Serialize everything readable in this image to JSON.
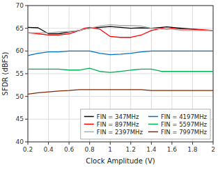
{
  "chart_data": {
    "type": "line",
    "xlabel": "Clock Amplitude (V)",
    "ylabel": "SFDR (dBFS)",
    "x": [
      0.2,
      0.3,
      0.4,
      0.5,
      0.6,
      0.7,
      0.75,
      0.8,
      0.9,
      1.0,
      1.1,
      1.2,
      1.3,
      1.4,
      1.5,
      1.55,
      1.6,
      1.7,
      1.8,
      1.9,
      2.0
    ],
    "series": [
      {
        "name": "FIN = 347MHz",
        "color": "#000000",
        "values": [
          65.2,
          65.1,
          63.8,
          63.8,
          64.2,
          64.5,
          64.8,
          65.0,
          65.2,
          65.4,
          65.2,
          65.0,
          65.1,
          65.0,
          65.2,
          65.3,
          65.2,
          65.0,
          64.8,
          64.6,
          64.5
        ]
      },
      {
        "name": "FIN = 897MHz",
        "color": "#ff0000",
        "values": [
          64.0,
          63.8,
          63.5,
          63.5,
          63.8,
          64.5,
          65.0,
          65.2,
          64.8,
          63.2,
          63.0,
          63.0,
          63.5,
          64.5,
          65.0,
          64.8,
          65.0,
          64.8,
          64.8,
          64.7,
          64.5
        ]
      },
      {
        "name": "FIN = 2397MHz",
        "color": "#aaaaaa",
        "values": [
          64.0,
          64.0,
          64.0,
          64.2,
          64.3,
          64.5,
          64.8,
          65.0,
          65.5,
          65.8,
          65.6,
          65.6,
          65.5,
          65.0,
          64.8,
          64.8,
          64.8,
          64.5,
          64.5,
          64.5,
          64.5
        ]
      },
      {
        "name": "FIN = 4197MHz",
        "color": "#0070c0",
        "values": [
          59.0,
          59.5,
          59.8,
          59.8,
          60.0,
          60.0,
          60.0,
          60.0,
          59.5,
          59.2,
          59.3,
          59.5,
          59.8,
          60.0,
          60.0,
          60.0,
          60.0,
          60.0,
          60.0,
          60.0,
          60.0
        ]
      },
      {
        "name": "FIN = 5597MHz",
        "color": "#00b050",
        "values": [
          56.0,
          56.0,
          56.0,
          56.0,
          55.8,
          55.8,
          56.0,
          56.2,
          55.5,
          55.3,
          55.5,
          55.8,
          56.0,
          56.0,
          55.5,
          55.5,
          55.5,
          55.5,
          55.5,
          55.5,
          55.5
        ]
      },
      {
        "name": "FIN = 7997MHz",
        "color": "#7f2800",
        "values": [
          50.5,
          50.8,
          51.0,
          51.2,
          51.3,
          51.5,
          51.5,
          51.5,
          51.5,
          51.5,
          51.5,
          51.5,
          51.5,
          51.3,
          51.3,
          51.3,
          51.3,
          51.3,
          51.3,
          51.3,
          51.3
        ]
      }
    ],
    "xlim": [
      0.2,
      2.0
    ],
    "ylim": [
      40,
      70
    ],
    "xticks": [
      0.2,
      0.4,
      0.6,
      0.8,
      1,
      1.2,
      1.4,
      1.6,
      1.8,
      2
    ],
    "yticks": [
      40,
      45,
      50,
      55,
      60,
      65,
      70
    ],
    "grid": true,
    "legend": "lower right"
  }
}
